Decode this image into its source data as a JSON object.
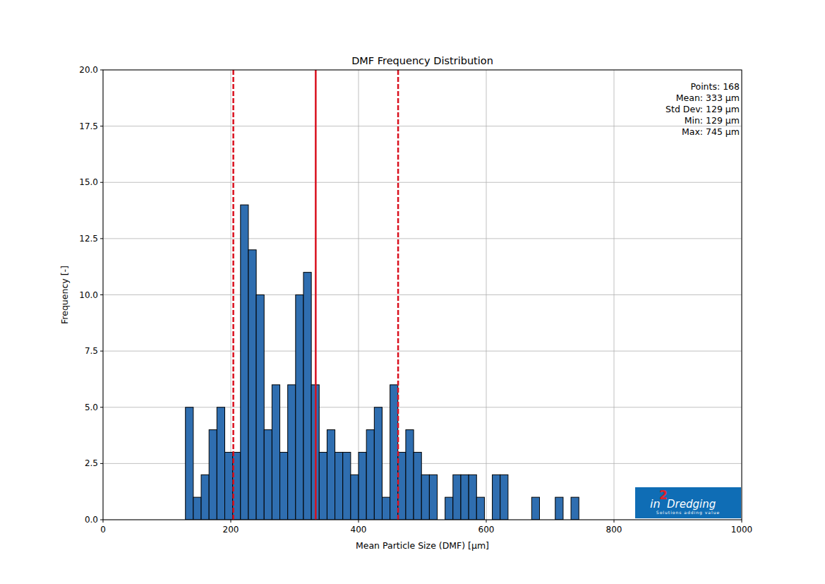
{
  "chart_data": {
    "type": "histogram",
    "title": "DMF Frequency Distribution",
    "x_label": "Mean Particle Size (DMF) [μm]",
    "y_label": "Frequency [-]",
    "bins": [
      129,
      141.32,
      153.64,
      165.96,
      178.28,
      190.6,
      202.92,
      215.24,
      227.56,
      239.88,
      252.2,
      264.52,
      276.84,
      289.16,
      301.48,
      313.8,
      326.12,
      338.44,
      350.76,
      363.08,
      375.4,
      387.72,
      400.04,
      412.36,
      424.68,
      437,
      449.32,
      461.64,
      473.96,
      486.28,
      498.6,
      510.92,
      523.24,
      535.56,
      547.88,
      560.2,
      572.52,
      584.84,
      597.16,
      609.48,
      621.8,
      634.12,
      646.44,
      658.76,
      671.08,
      683.4,
      695.72,
      708.04,
      720.36,
      732.68,
      745
    ],
    "values": [
      5,
      1,
      2,
      4,
      5,
      3,
      3,
      14,
      12,
      10,
      4,
      6,
      3,
      6,
      10,
      11,
      6,
      3,
      4,
      3,
      3,
      2,
      3,
      4,
      5,
      1,
      6,
      3,
      4,
      3,
      2,
      2,
      0,
      1,
      2,
      2,
      2,
      1,
      0,
      2,
      2,
      0,
      0,
      0,
      1,
      0,
      0,
      1,
      0,
      1
    ],
    "color": "#2f6eb0",
    "mean_line": 333,
    "std_lines": [
      204,
      462
    ],
    "annotations": [
      "Points: 168",
      "Mean: 333 μm",
      "Std Dev: 129 μm",
      "Min: 129 μm",
      "Max: 745 μm"
    ],
    "logo": {
      "prefix": "in",
      "superscript": "2",
      "name": "Dredging",
      "tagline": "Solutions adding value"
    },
    "xlim": [
      0,
      1000
    ],
    "xticks": [
      0,
      200,
      400,
      600,
      800,
      1000
    ],
    "ylim": [
      0,
      20
    ],
    "yticks": [
      {
        "value": 0,
        "label": "0.0"
      },
      2.5,
      {
        "value": 5,
        "label": "5.0"
      },
      7.5,
      {
        "value": 10,
        "label": "10.0"
      },
      12.5,
      {
        "value": 15,
        "label": "15.0"
      },
      17.5,
      {
        "value": 20,
        "label": "20.0"
      }
    ],
    "grid": true
  }
}
